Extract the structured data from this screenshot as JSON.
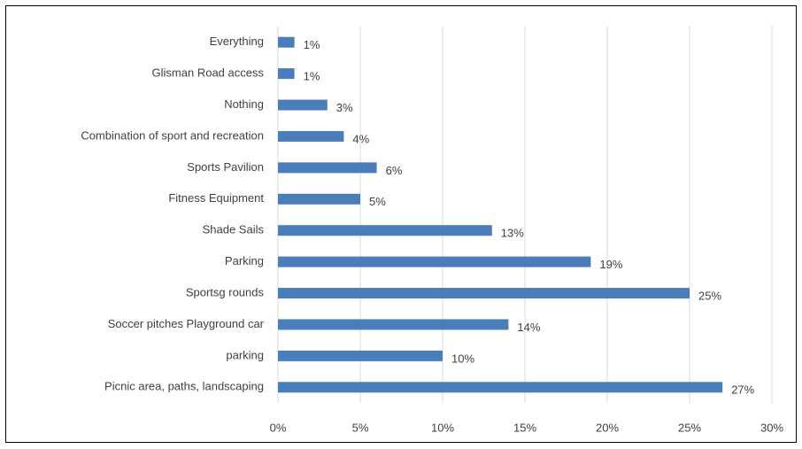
{
  "chart_data": {
    "type": "hbar",
    "categories": [
      "Everything",
      "Glisman Road access",
      "Nothing",
      "Combination of sport and recreation",
      "Sports Pavilion",
      "Fitness Equipment",
      "Shade Sails",
      "Parking",
      "Sportsg rounds",
      "Soccer pitches Playground car",
      "parking",
      "Picnic area,  paths, landscaping"
    ],
    "values": [
      1,
      1,
      3,
      4,
      6,
      5,
      13,
      19,
      25,
      14,
      10,
      27
    ],
    "value_labels": [
      "1%",
      "1%",
      "3%",
      "4%",
      "6%",
      "5%",
      "13%",
      "19%",
      "25%",
      "14%",
      "10%",
      "27%"
    ],
    "color": "#4a7ebb",
    "xlim": [
      0,
      30
    ],
    "xticks": [
      {
        "value": 0,
        "label": "0%"
      },
      {
        "value": 5,
        "label": "5%"
      },
      {
        "value": 10,
        "label": "10%"
      },
      {
        "value": 15,
        "label": "15%"
      },
      {
        "value": 20,
        "label": "20%"
      },
      {
        "value": 25,
        "label": "25%"
      },
      {
        "value": 30,
        "label": "30%"
      }
    ],
    "grid": true
  }
}
